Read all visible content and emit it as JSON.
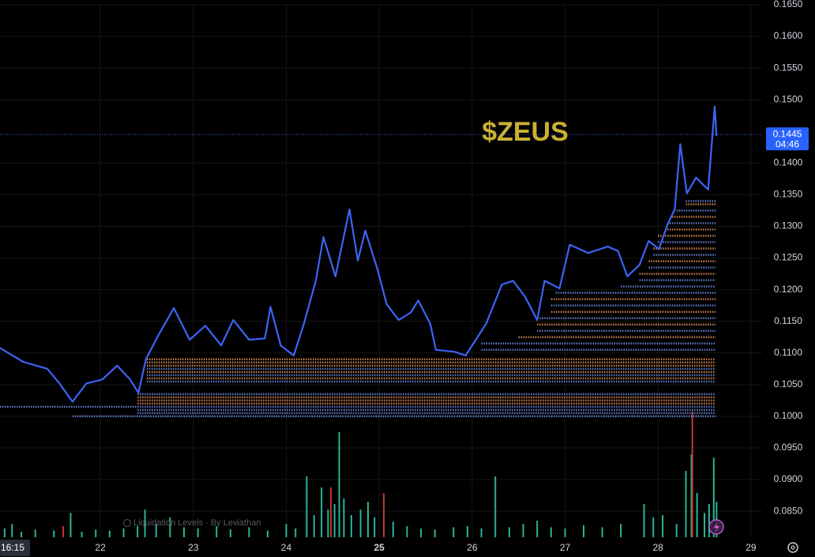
{
  "chart_data": {
    "type": "line",
    "title": "$ZEUS",
    "watermark": "Liquidation Levels · By Leviathan",
    "crosshair_time": "16:15",
    "last_price": 0.1445,
    "countdown": "04:46",
    "xlim": [
      20.92,
      29.12
    ],
    "xticks": [
      22,
      23,
      24,
      25,
      26,
      27,
      28,
      29
    ],
    "ylim": [
      0.0809,
      0.165
    ],
    "yticks": [
      {
        "value": 0.165,
        "label": "0.1650"
      },
      {
        "value": 0.16,
        "label": "0.1600"
      },
      {
        "value": 0.155,
        "label": "0.1550"
      },
      {
        "value": 0.15,
        "label": "0.1500"
      },
      {
        "value": 0.14,
        "label": "0.1400"
      },
      {
        "value": 0.135,
        "label": "0.1350"
      },
      {
        "value": 0.13,
        "label": "0.1300"
      },
      {
        "value": 0.125,
        "label": "0.1250"
      },
      {
        "value": 0.12,
        "label": "0.1200"
      },
      {
        "value": 0.115,
        "label": "0.1150"
      },
      {
        "value": 0.11,
        "label": "0.1100"
      },
      {
        "value": 0.105,
        "label": "0.1050"
      },
      {
        "value": 0.1,
        "label": "0.1000"
      },
      {
        "value": 0.095,
        "label": "0.0950"
      },
      {
        "value": 0.09,
        "label": "0.0900"
      },
      {
        "value": 0.085,
        "label": "0.0850"
      }
    ],
    "grid": true,
    "series": [
      {
        "color": "#3d63f5",
        "x": [
          20.92,
          21.17,
          21.43,
          21.56,
          21.7,
          21.85,
          22.02,
          22.18,
          22.32,
          22.41,
          22.49,
          22.62,
          22.79,
          22.96,
          23.13,
          23.3,
          23.43,
          23.6,
          23.77,
          23.83,
          23.94,
          24.08,
          24.19,
          24.32,
          24.4,
          24.53,
          24.68,
          24.77,
          24.85,
          24.98,
          25.08,
          25.21,
          25.34,
          25.42,
          25.55,
          25.61,
          25.81,
          25.93,
          26.15,
          26.32,
          26.44,
          26.57,
          26.7,
          26.78,
          26.94,
          27.05,
          27.25,
          27.46,
          27.57,
          27.67,
          27.8,
          27.9,
          28.01,
          28.1,
          28.18,
          28.24,
          28.31,
          28.41,
          28.54,
          28.61,
          28.63
        ],
        "values": [
          0.1108,
          0.1086,
          0.1075,
          0.1052,
          0.1023,
          0.1052,
          0.1058,
          0.108,
          0.1058,
          0.1037,
          0.109,
          0.1127,
          0.1171,
          0.1121,
          0.1143,
          0.1112,
          0.1152,
          0.1121,
          0.1123,
          0.1173,
          0.1112,
          0.1096,
          0.1146,
          0.1215,
          0.1283,
          0.1221,
          0.1327,
          0.1246,
          0.1293,
          0.1233,
          0.1177,
          0.1152,
          0.1164,
          0.1183,
          0.1146,
          0.1105,
          0.1102,
          0.1096,
          0.1146,
          0.1208,
          0.1214,
          0.1189,
          0.1152,
          0.1214,
          0.1202,
          0.1271,
          0.1258,
          0.1268,
          0.1261,
          0.1221,
          0.1239,
          0.1277,
          0.1264,
          0.1302,
          0.1327,
          0.143,
          0.1352,
          0.1377,
          0.1358,
          0.1489,
          0.1443
        ]
      }
    ],
    "levels_end": 28.62,
    "levels": [
      {
        "price": 0.1,
        "start": 21.7,
        "color": "#6f8fe8"
      },
      {
        "price": 0.1005,
        "start": 22.4,
        "color": "#6f8fe8"
      },
      {
        "price": 0.101,
        "start": 22.4,
        "color": "#6f8fe8"
      },
      {
        "price": 0.1015,
        "start": 20.92,
        "color": "#6f8fe8"
      },
      {
        "price": 0.102,
        "start": 22.4,
        "color": "#e8925a"
      },
      {
        "price": 0.1025,
        "start": 22.4,
        "color": "#e8925a"
      },
      {
        "price": 0.103,
        "start": 22.4,
        "color": "#e8925a"
      },
      {
        "price": 0.1035,
        "start": 22.4,
        "color": "#6f8fe8"
      },
      {
        "price": 0.1055,
        "start": 22.5,
        "color": "#6f8fe8"
      },
      {
        "price": 0.106,
        "start": 22.5,
        "color": "#e8925a"
      },
      {
        "price": 0.1065,
        "start": 22.5,
        "color": "#6f8fe8"
      },
      {
        "price": 0.107,
        "start": 22.5,
        "color": "#e8925a"
      },
      {
        "price": 0.1075,
        "start": 22.5,
        "color": "#6f8fe8"
      },
      {
        "price": 0.108,
        "start": 22.5,
        "color": "#e8925a"
      },
      {
        "price": 0.1085,
        "start": 22.5,
        "color": "#e8925a"
      },
      {
        "price": 0.109,
        "start": 22.5,
        "color": "#e8925a"
      },
      {
        "price": 0.1105,
        "start": 26.1,
        "color": "#6f8fe8"
      },
      {
        "price": 0.1115,
        "start": 26.1,
        "color": "#6f8fe8"
      },
      {
        "price": 0.1125,
        "start": 26.5,
        "color": "#e8925a"
      },
      {
        "price": 0.1135,
        "start": 26.7,
        "color": "#6f8fe8"
      },
      {
        "price": 0.1145,
        "start": 26.7,
        "color": "#e8925a"
      },
      {
        "price": 0.1155,
        "start": 26.7,
        "color": "#6f8fe8"
      },
      {
        "price": 0.1165,
        "start": 26.85,
        "color": "#e8925a"
      },
      {
        "price": 0.1175,
        "start": 26.85,
        "color": "#6f8fe8"
      },
      {
        "price": 0.1185,
        "start": 26.85,
        "color": "#e8925a"
      },
      {
        "price": 0.1195,
        "start": 26.9,
        "color": "#6f8fe8"
      },
      {
        "price": 0.1205,
        "start": 27.6,
        "color": "#6f8fe8"
      },
      {
        "price": 0.1215,
        "start": 27.8,
        "color": "#6f8fe8"
      },
      {
        "price": 0.1225,
        "start": 27.8,
        "color": "#e8925a"
      },
      {
        "price": 0.1235,
        "start": 27.9,
        "color": "#6f8fe8"
      },
      {
        "price": 0.1245,
        "start": 27.9,
        "color": "#e8925a"
      },
      {
        "price": 0.1255,
        "start": 27.95,
        "color": "#6f8fe8"
      },
      {
        "price": 0.1265,
        "start": 27.95,
        "color": "#e8925a"
      },
      {
        "price": 0.1275,
        "start": 28.0,
        "color": "#6f8fe8"
      },
      {
        "price": 0.1285,
        "start": 28.0,
        "color": "#e8925a"
      },
      {
        "price": 0.1295,
        "start": 28.1,
        "color": "#e8925a"
      },
      {
        "price": 0.1305,
        "start": 28.1,
        "color": "#6f8fe8"
      },
      {
        "price": 0.1315,
        "start": 28.15,
        "color": "#e8925a"
      },
      {
        "price": 0.1325,
        "start": 28.2,
        "color": "#6f8fe8"
      },
      {
        "price": 0.1335,
        "start": 28.3,
        "color": "#e8925a"
      },
      {
        "price": 0.134,
        "start": 28.3,
        "color": "#6f8fe8"
      }
    ],
    "volume": [
      {
        "color": "#2bb39a",
        "x": [
          20.97,
          21.05,
          21.15,
          21.3,
          21.5,
          21.68,
          21.8,
          21.95,
          22.1,
          22.25,
          22.4,
          22.48,
          22.6,
          22.75,
          22.9,
          23.05,
          23.25,
          23.4,
          23.6,
          23.8,
          24.0,
          24.1,
          24.22,
          24.3,
          24.38,
          24.45,
          24.52,
          24.57,
          24.62,
          24.7,
          24.8,
          24.88,
          24.95,
          25.05,
          25.15,
          25.3,
          25.45,
          25.6,
          25.8,
          25.95,
          26.1,
          26.25,
          26.4,
          26.55,
          26.7,
          26.85,
          27.0,
          27.2,
          27.4,
          27.6,
          27.85,
          27.95,
          28.05,
          28.2,
          28.3,
          28.36,
          28.42,
          28.5,
          28.55,
          28.6,
          28.63
        ],
        "values": [
          8,
          12,
          5,
          7,
          6,
          22,
          5,
          7,
          6,
          8,
          10,
          25,
          12,
          18,
          9,
          8,
          10,
          7,
          9,
          6,
          12,
          8,
          55,
          20,
          45,
          25,
          30,
          95,
          35,
          20,
          25,
          32,
          18,
          12,
          14,
          10,
          8,
          7,
          9,
          10,
          8,
          55,
          9,
          12,
          15,
          9,
          8,
          11,
          9,
          12,
          30,
          18,
          20,
          12,
          60,
          75,
          40,
          22,
          30,
          72,
          32
        ]
      },
      {
        "color": "#c0392b",
        "x": [
          21.6,
          24.48,
          25.05,
          28.37
        ],
        "values": [
          10,
          45,
          40,
          114
        ]
      }
    ]
  }
}
